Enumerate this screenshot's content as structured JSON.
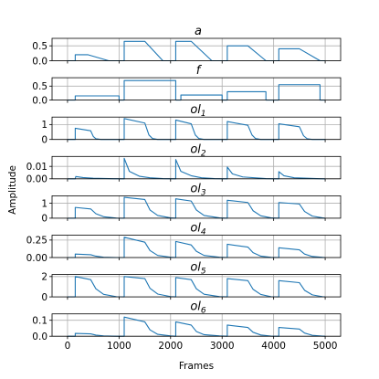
{
  "chart_data": {
    "type": "line",
    "xlabel": "Frames",
    "ylabel": "Amplitude",
    "xlim": [
      -300,
      5300
    ],
    "xticks": [
      0,
      1000,
      2000,
      3000,
      4000,
      5000
    ],
    "grid": true,
    "line_color": "#1f77b4",
    "panels": [
      {
        "title": "a",
        "title_base": "a",
        "title_sub": "",
        "ylim": [
          0,
          0.75
        ],
        "yticks": [
          0.0,
          0.5
        ],
        "ytick_labels": [
          "0.0",
          "0.5"
        ],
        "x": [
          0,
          150,
          150,
          400,
          800,
          1100,
          1100,
          1500,
          1850,
          2100,
          2100,
          2400,
          2800,
          3100,
          3100,
          3500,
          3850,
          4100,
          4100,
          4500,
          4900,
          5000
        ],
        "y": [
          0,
          0,
          0.2,
          0.2,
          0,
          0,
          0.65,
          0.65,
          0,
          0,
          0.65,
          0.65,
          0,
          0,
          0.5,
          0.5,
          0,
          0,
          0.4,
          0.4,
          0,
          0
        ]
      },
      {
        "title": "f",
        "title_base": "f",
        "title_sub": "",
        "ylim": [
          0,
          0.8
        ],
        "yticks": [
          0.0,
          0.5
        ],
        "ytick_labels": [
          "0.0",
          "0.5"
        ],
        "x": [
          0,
          150,
          150,
          1000,
          1000,
          1100,
          1100,
          2100,
          2100,
          2200,
          2200,
          3000,
          3000,
          3100,
          3100,
          3850,
          3850,
          4100,
          4100,
          4900,
          4900,
          5000
        ],
        "y": [
          0,
          0,
          0.15,
          0.15,
          0,
          0,
          0.7,
          0.7,
          0,
          0,
          0.18,
          0.18,
          0,
          0,
          0.3,
          0.3,
          0,
          0,
          0.55,
          0.55,
          0,
          0
        ]
      },
      {
        "title": "ol1",
        "title_base": "ol",
        "title_sub": "1",
        "ylim": [
          0,
          1.5
        ],
        "yticks": [
          0,
          1
        ],
        "ytick_labels": [
          "0",
          "1"
        ],
        "x": [
          0,
          150,
          150,
          450,
          500,
          550,
          650,
          1000,
          1100,
          1100,
          1500,
          1580,
          1650,
          1750,
          2100,
          2100,
          2400,
          2480,
          2550,
          2650,
          3100,
          3100,
          3500,
          3580,
          3650,
          3750,
          4100,
          4100,
          4500,
          4580,
          4650,
          4750,
          5000
        ],
        "y": [
          0,
          0,
          0.75,
          0.58,
          0.2,
          0.05,
          0,
          0,
          0,
          1.4,
          1.1,
          0.3,
          0.06,
          0,
          0,
          1.3,
          1.05,
          0.3,
          0.06,
          0,
          0,
          1.2,
          0.95,
          0.3,
          0.06,
          0,
          0,
          1.05,
          0.85,
          0.25,
          0.05,
          0,
          0
        ]
      },
      {
        "title": "ol2",
        "title_base": "ol",
        "title_sub": "2",
        "ylim": [
          0,
          0.018
        ],
        "yticks": [
          0.0,
          0.01
        ],
        "ytick_labels": [
          "0.00",
          "0.01"
        ],
        "x": [
          0,
          150,
          160,
          300,
          500,
          900,
          1100,
          1100,
          1200,
          1400,
          1600,
          1850,
          2100,
          2100,
          2200,
          2400,
          2600,
          2850,
          3100,
          3100,
          3200,
          3400,
          3850,
          4100,
          4100,
          4200,
          4400,
          4900,
          5000
        ],
        "y": [
          0,
          0,
          0.0018,
          0.001,
          0.0005,
          0.0001,
          0,
          0.0165,
          0.006,
          0.002,
          0.0008,
          0.0002,
          0,
          0.0155,
          0.006,
          0.0025,
          0.0008,
          0.0002,
          0,
          0.0095,
          0.004,
          0.0015,
          0.0002,
          0,
          0.0058,
          0.0025,
          0.0008,
          0.0001,
          0
        ]
      },
      {
        "title": "ol3",
        "title_base": "ol",
        "title_sub": "3",
        "ylim": [
          0,
          1.5
        ],
        "yticks": [
          0,
          1
        ],
        "ytick_labels": [
          "0",
          "1"
        ],
        "x": [
          0,
          150,
          150,
          450,
          550,
          700,
          950,
          1100,
          1100,
          1500,
          1600,
          1750,
          2000,
          2100,
          2100,
          2400,
          2500,
          2650,
          2950,
          3100,
          3100,
          3500,
          3600,
          3750,
          3950,
          4100,
          4100,
          4500,
          4600,
          4750,
          4950,
          5000
        ],
        "y": [
          0,
          0,
          0.72,
          0.62,
          0.3,
          0.1,
          0.01,
          0,
          1.4,
          1.25,
          0.55,
          0.18,
          0.02,
          0,
          1.3,
          1.15,
          0.55,
          0.18,
          0.02,
          0,
          1.2,
          1.05,
          0.5,
          0.16,
          0.02,
          0,
          1.05,
          0.95,
          0.45,
          0.14,
          0.02,
          0
        ]
      },
      {
        "title": "ol4",
        "title_base": "ol",
        "title_sub": "4",
        "ylim": [
          0,
          0.32
        ],
        "yticks": [
          0.0,
          0.25
        ],
        "ytick_labels": [
          "0.00",
          "0.25"
        ],
        "x": [
          0,
          150,
          150,
          450,
          550,
          700,
          950,
          1100,
          1100,
          1500,
          1600,
          1750,
          2000,
          2100,
          2100,
          2400,
          2500,
          2650,
          2950,
          3100,
          3100,
          3500,
          3600,
          3750,
          3950,
          4100,
          4100,
          4500,
          4600,
          4750,
          4950,
          5000
        ],
        "y": [
          0,
          0,
          0.05,
          0.04,
          0.02,
          0.005,
          0,
          0,
          0.29,
          0.22,
          0.1,
          0.03,
          0.005,
          0,
          0.23,
          0.18,
          0.09,
          0.03,
          0.005,
          0,
          0.19,
          0.15,
          0.07,
          0.02,
          0.003,
          0,
          0.14,
          0.11,
          0.05,
          0.015,
          0.002,
          0
        ]
      },
      {
        "title": "ol5",
        "title_base": "ol",
        "title_sub": "5",
        "ylim": [
          0,
          2.2
        ],
        "yticks": [
          0,
          2
        ],
        "ytick_labels": [
          "0",
          "2"
        ],
        "x": [
          0,
          150,
          150,
          450,
          550,
          700,
          950,
          1100,
          1100,
          1500,
          1600,
          1750,
          2000,
          2100,
          2100,
          2400,
          2500,
          2650,
          2950,
          3100,
          3100,
          3500,
          3600,
          3750,
          3950,
          4100,
          4100,
          4500,
          4600,
          4750,
          4950,
          5000
        ],
        "y": [
          0,
          0,
          2.0,
          1.7,
          0.8,
          0.25,
          0.02,
          0,
          2.0,
          1.8,
          0.85,
          0.28,
          0.03,
          0,
          1.9,
          1.7,
          0.8,
          0.26,
          0.03,
          0,
          1.8,
          1.6,
          0.75,
          0.24,
          0.02,
          0,
          1.6,
          1.4,
          0.65,
          0.2,
          0.02,
          0
        ]
      },
      {
        "title": "ol6",
        "title_base": "ol",
        "title_sub": "6",
        "ylim": [
          0,
          0.14
        ],
        "yticks": [
          0.0,
          0.1
        ],
        "ytick_labels": [
          "0.0",
          "0.1"
        ],
        "x": [
          0,
          150,
          150,
          450,
          550,
          700,
          950,
          1100,
          1100,
          1500,
          1600,
          1750,
          2000,
          2100,
          2100,
          2400,
          2500,
          2650,
          2950,
          3100,
          3100,
          3500,
          3600,
          3750,
          3950,
          4100,
          4100,
          4500,
          4600,
          4750,
          4950,
          5000
        ],
        "y": [
          0,
          0,
          0.018,
          0.015,
          0.007,
          0.002,
          0,
          0,
          0.12,
          0.09,
          0.04,
          0.012,
          0.002,
          0,
          0.09,
          0.07,
          0.03,
          0.01,
          0.002,
          0,
          0.07,
          0.055,
          0.025,
          0.008,
          0.001,
          0,
          0.055,
          0.045,
          0.02,
          0.006,
          0.001,
          0
        ]
      }
    ]
  }
}
